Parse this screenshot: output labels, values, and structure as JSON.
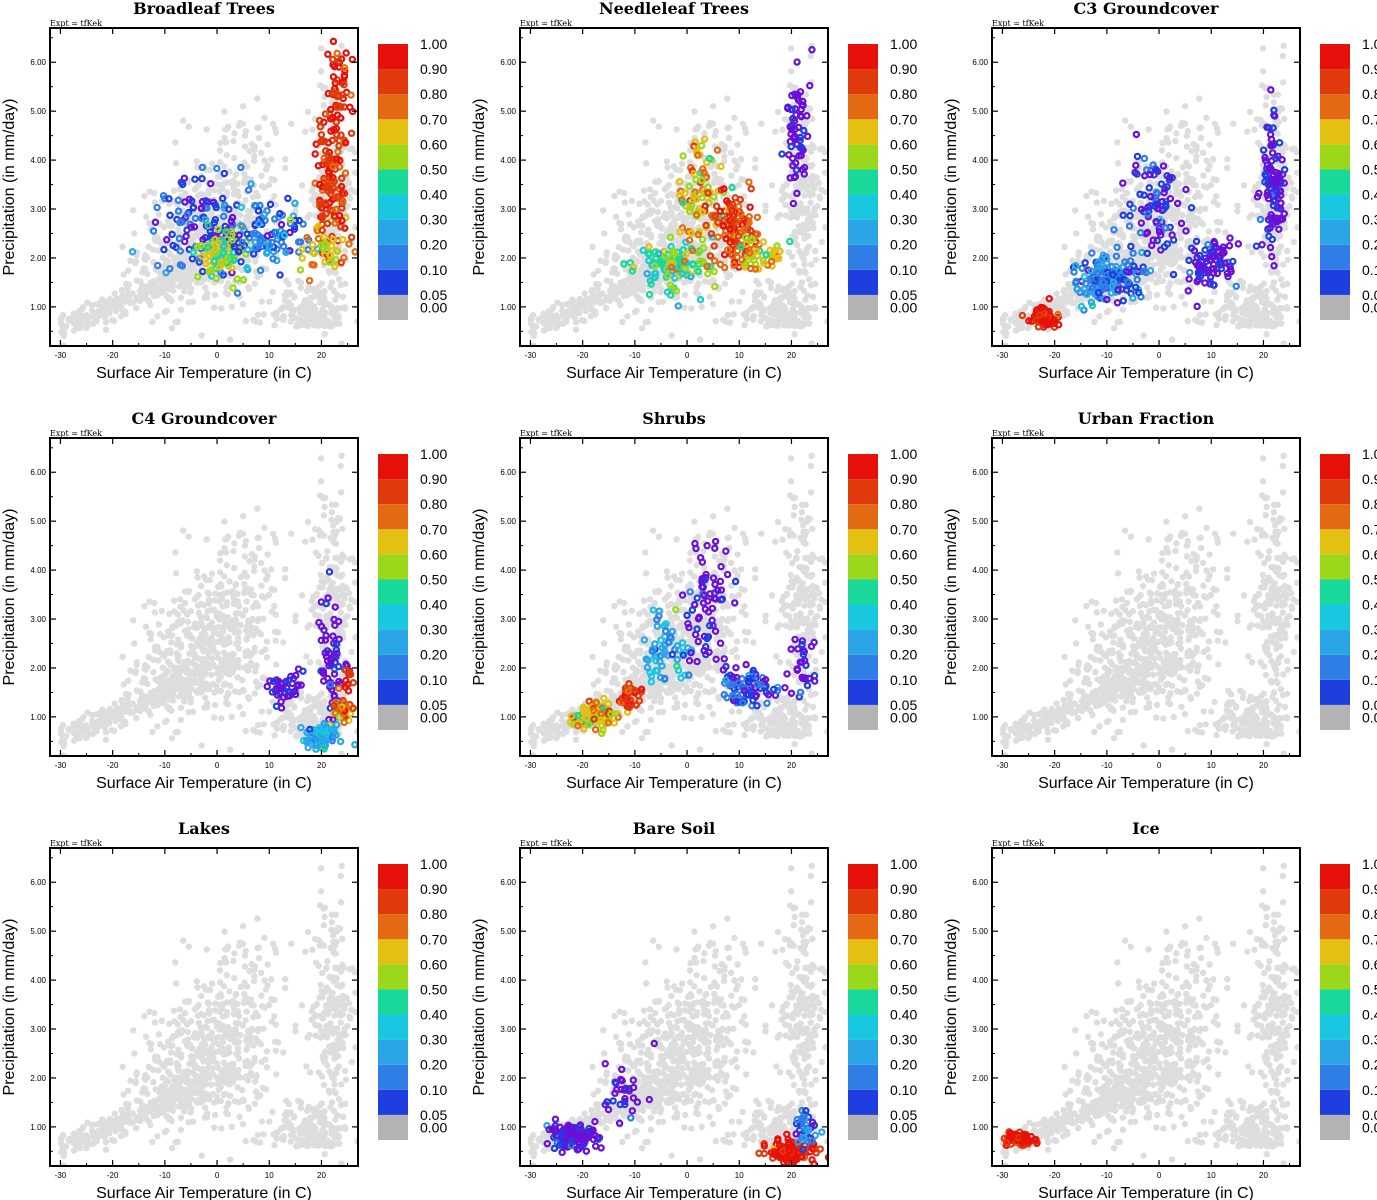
{
  "figure": {
    "expt_label": "Expt = tfKek",
    "xlabel": "Surface Air Temperature (in C)",
    "ylabel": "Precipitation (in mm/day)",
    "x_ticks": [
      "-30",
      "-20",
      "-10",
      "0",
      "10",
      "20"
    ],
    "y_ticks": [
      "1.00",
      "2.00",
      "3.00",
      "4.00",
      "5.00",
      "6.00"
    ],
    "colorbar": {
      "labels": [
        "0.00",
        "0.05",
        "0.10",
        "0.20",
        "0.30",
        "0.40",
        "0.50",
        "0.60",
        "0.70",
        "0.80",
        "0.90",
        "1.00"
      ],
      "colors": [
        "#b3b3b3",
        "#6a0fd8",
        "#1e3ee0",
        "#2f7ee6",
        "#2aa6e6",
        "#19c7e0",
        "#18d99a",
        "#9bd81c",
        "#e3c011",
        "#e36a12",
        "#e03a0c",
        "#e8100a"
      ]
    },
    "background_point_color": "#dddddd"
  },
  "chart_data": [
    {
      "type": "scatter",
      "title": "Broadleaf Trees",
      "xlim": [
        -32,
        27
      ],
      "ylim": [
        0.2,
        6.7
      ],
      "clusters": [
        {
          "cx": -3,
          "cy": 2.6,
          "sx": 8,
          "sy": 0.9,
          "n": 120,
          "band": 2
        },
        {
          "cx": 1,
          "cy": 2.1,
          "sx": 4,
          "sy": 0.45,
          "n": 80,
          "band": 7
        },
        {
          "cx": 10,
          "cy": 2.5,
          "sx": 6,
          "sy": 0.6,
          "n": 90,
          "band": 3
        },
        {
          "cx": 22,
          "cy": 3.6,
          "sx": 2.5,
          "sy": 1.2,
          "n": 120,
          "band": 10
        },
        {
          "cx": 23,
          "cy": 5.4,
          "sx": 2,
          "sy": 0.8,
          "n": 50,
          "band": 11
        },
        {
          "cx": 20,
          "cy": 2.2,
          "sx": 5,
          "sy": 0.4,
          "n": 40,
          "band": 8
        }
      ]
    },
    {
      "type": "scatter",
      "title": "Needleleaf Trees",
      "xlim": [
        -32,
        27
      ],
      "ylim": [
        0.2,
        6.7
      ],
      "clusters": [
        {
          "cx": -3,
          "cy": 1.8,
          "sx": 6,
          "sy": 0.4,
          "n": 110,
          "band": 6
        },
        {
          "cx": 2,
          "cy": 3.3,
          "sx": 4,
          "sy": 0.9,
          "n": 80,
          "band": 8
        },
        {
          "cx": 9,
          "cy": 2.6,
          "sx": 4,
          "sy": 0.6,
          "n": 110,
          "band": 10
        },
        {
          "cx": 14,
          "cy": 2.0,
          "sx": 4,
          "sy": 0.4,
          "n": 50,
          "band": 8
        },
        {
          "cx": 21,
          "cy": 4.5,
          "sx": 2,
          "sy": 1.1,
          "n": 60,
          "band": 1
        }
      ]
    },
    {
      "type": "scatter",
      "title": "C3 Groundcover",
      "xlim": [
        -32,
        27
      ],
      "ylim": [
        0.2,
        6.7
      ],
      "clusters": [
        {
          "cx": -22,
          "cy": 0.8,
          "sx": 2,
          "sy": 0.2,
          "n": 70,
          "band": 11
        },
        {
          "cx": -10,
          "cy": 1.6,
          "sx": 5,
          "sy": 0.4,
          "n": 150,
          "band": 3
        },
        {
          "cx": -1,
          "cy": 3.0,
          "sx": 5,
          "sy": 0.9,
          "n": 90,
          "band": 2
        },
        {
          "cx": 10,
          "cy": 1.9,
          "sx": 5,
          "sy": 0.5,
          "n": 80,
          "band": 1
        },
        {
          "cx": 22,
          "cy": 3.5,
          "sx": 2,
          "sy": 1.1,
          "n": 100,
          "band": 1
        }
      ]
    },
    {
      "type": "scatter",
      "title": "C4 Groundcover",
      "xlim": [
        -32,
        27
      ],
      "ylim": [
        0.2,
        6.7
      ],
      "clusters": [
        {
          "cx": 13,
          "cy": 1.6,
          "sx": 3,
          "sy": 0.3,
          "n": 40,
          "band": 1
        },
        {
          "cx": 22,
          "cy": 2.2,
          "sx": 2,
          "sy": 1.0,
          "n": 60,
          "band": 1
        },
        {
          "cx": 20,
          "cy": 0.6,
          "sx": 3,
          "sy": 0.25,
          "n": 90,
          "band": 4
        },
        {
          "cx": 24,
          "cy": 1.2,
          "sx": 1.5,
          "sy": 0.3,
          "n": 30,
          "band": 9
        },
        {
          "cx": 25,
          "cy": 1.8,
          "sx": 1,
          "sy": 0.2,
          "n": 10,
          "band": 11
        }
      ]
    },
    {
      "type": "scatter",
      "title": "Shrubs",
      "xlim": [
        -32,
        27
      ],
      "ylim": [
        0.2,
        6.7
      ],
      "clusters": [
        {
          "cx": -18,
          "cy": 1.0,
          "sx": 4,
          "sy": 0.25,
          "n": 90,
          "band": 8
        },
        {
          "cx": -11,
          "cy": 1.4,
          "sx": 2,
          "sy": 0.2,
          "n": 30,
          "band": 10
        },
        {
          "cx": -4,
          "cy": 2.4,
          "sx": 4,
          "sy": 0.6,
          "n": 60,
          "band": 4
        },
        {
          "cx": 4,
          "cy": 3.3,
          "sx": 4,
          "sy": 1.0,
          "n": 70,
          "band": 1
        },
        {
          "cx": 12,
          "cy": 1.6,
          "sx": 4,
          "sy": 0.3,
          "n": 80,
          "band": 2
        },
        {
          "cx": 22,
          "cy": 2.0,
          "sx": 2,
          "sy": 0.5,
          "n": 30,
          "band": 1
        }
      ]
    },
    {
      "type": "scatter",
      "title": "Urban Fraction",
      "xlim": [
        -32,
        27
      ],
      "ylim": [
        0.2,
        6.7
      ],
      "clusters": []
    },
    {
      "type": "scatter",
      "title": "Lakes",
      "xlim": [
        -32,
        27
      ],
      "ylim": [
        0.2,
        6.7
      ],
      "clusters": []
    },
    {
      "type": "scatter",
      "title": "Bare Soil",
      "xlim": [
        -32,
        27
      ],
      "ylim": [
        0.2,
        6.7
      ],
      "clusters": [
        {
          "cx": -22,
          "cy": 0.8,
          "sx": 4,
          "sy": 0.2,
          "n": 120,
          "band": 1
        },
        {
          "cx": -12,
          "cy": 1.8,
          "sx": 3,
          "sy": 0.5,
          "n": 30,
          "band": 1
        },
        {
          "cx": 20,
          "cy": 0.5,
          "sx": 4,
          "sy": 0.2,
          "n": 120,
          "band": 11
        },
        {
          "cx": 23,
          "cy": 1.0,
          "sx": 2,
          "sy": 0.3,
          "n": 40,
          "band": 3
        }
      ]
    },
    {
      "type": "scatter",
      "title": "Ice",
      "xlim": [
        -32,
        27
      ],
      "ylim": [
        0.2,
        6.7
      ],
      "clusters": [
        {
          "cx": -27,
          "cy": 0.75,
          "sx": 2.5,
          "sy": 0.12,
          "n": 70,
          "band": 11
        }
      ]
    }
  ]
}
